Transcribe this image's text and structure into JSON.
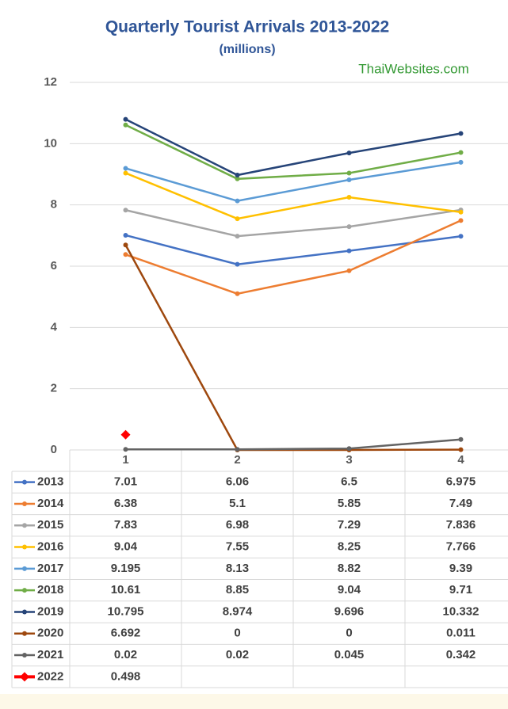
{
  "chart_data": {
    "type": "line",
    "title": "Quarterly Tourist Arrivals 2013-2022",
    "subtitle": "(millions)",
    "annotation": "ThaiWebsites.com",
    "categories": [
      "1",
      "2",
      "3",
      "4"
    ],
    "ylim": [
      0,
      12
    ],
    "yticks": [
      0,
      2,
      4,
      6,
      8,
      10,
      12
    ],
    "grid": true,
    "series": [
      {
        "name": "2013",
        "color": "#4472c4",
        "values": [
          7.01,
          6.06,
          6.5,
          6.975
        ]
      },
      {
        "name": "2014",
        "color": "#ed7d31",
        "values": [
          6.38,
          5.1,
          5.85,
          7.49
        ]
      },
      {
        "name": "2015",
        "color": "#a5a5a5",
        "values": [
          7.83,
          6.98,
          7.29,
          7.836
        ]
      },
      {
        "name": "2016",
        "color": "#ffc000",
        "values": [
          9.04,
          7.55,
          8.25,
          7.766
        ]
      },
      {
        "name": "2017",
        "color": "#5b9bd5",
        "values": [
          9.195,
          8.13,
          8.82,
          9.39
        ]
      },
      {
        "name": "2018",
        "color": "#70ad47",
        "values": [
          10.61,
          8.85,
          9.04,
          9.71
        ]
      },
      {
        "name": "2019",
        "color": "#264478",
        "values": [
          10.795,
          8.974,
          9.696,
          10.332
        ]
      },
      {
        "name": "2020",
        "color": "#9e480e",
        "values": [
          6.692,
          0,
          0,
          0.011
        ]
      },
      {
        "name": "2021",
        "color": "#636363",
        "values": [
          0.02,
          0.02,
          0.045,
          0.342
        ]
      },
      {
        "name": "2022",
        "color": "#ff0000",
        "marker": "diamond",
        "values": [
          0.498,
          null,
          null,
          null
        ]
      }
    ]
  }
}
